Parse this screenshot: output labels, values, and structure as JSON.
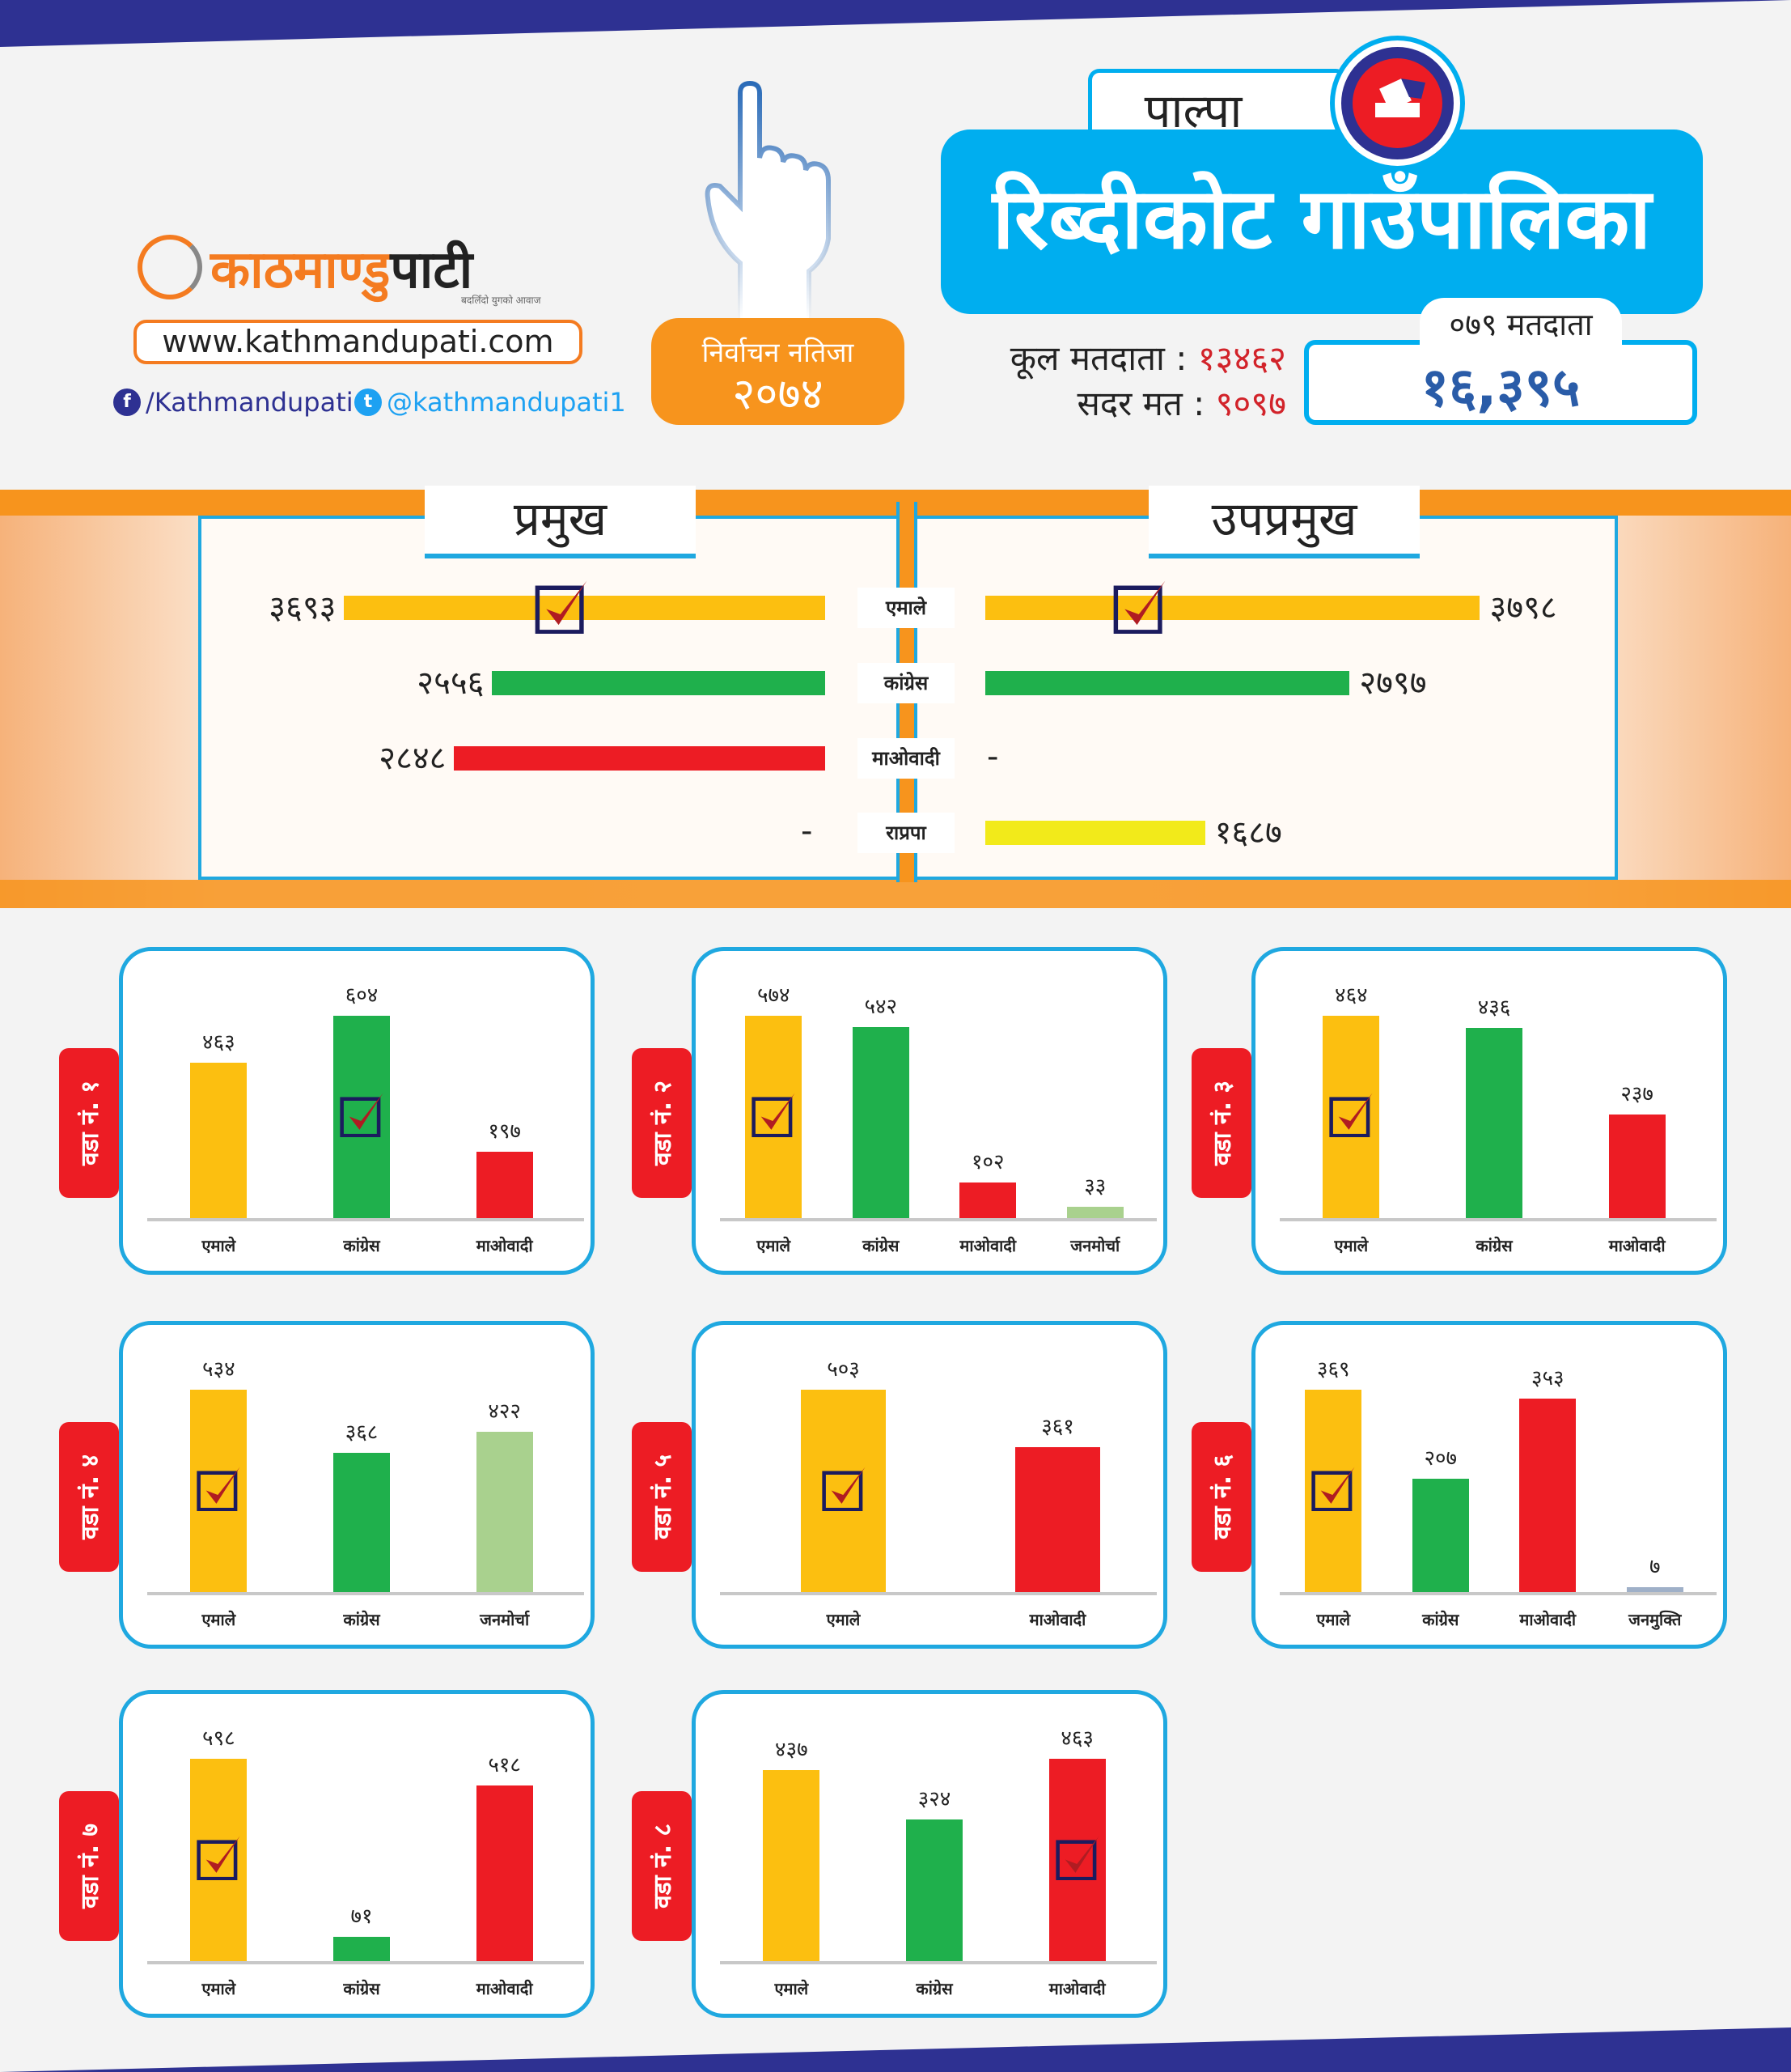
{
  "brand": {
    "logo_orange": "काठमाण्डु",
    "logo_black": "पाटी",
    "tagline": "बदलिँदो युगको आवाज",
    "url": "www.kathmandupati.com",
    "facebook": "/Kathmandupati",
    "twitter": "@kathmandupati1"
  },
  "badge": {
    "line1": "निर्वाचन नतिजा",
    "line2": "२०७४"
  },
  "header": {
    "district": "पाल्पा",
    "municipality": "रिब्दीकोट गाउँपालिका"
  },
  "stats": {
    "total_label": "कूल मतदाता :",
    "total_value": "१३४६२",
    "valid_label": "सदर मत :",
    "valid_value": "९०९७",
    "voters079_label": "०७९ मतदाता",
    "voters079_value": "१६,३९५"
  },
  "colors": {
    "एमाले": "#fcbf10",
    "कांग्रेस": "#1fb04c",
    "माओवादी": "#ed1c24",
    "राप्रपा": "#f2ea1a",
    "जनमोर्चा": "#a9d18e",
    "जनमुक्ति": "#9fb0c8",
    "accent": "#00aeef",
    "orange": "#f7941d"
  },
  "chart_data": [
    {
      "type": "bar",
      "title": "प्रमुख",
      "categories": [
        "एमाले",
        "कांग्रेस",
        "माओवादी",
        "राप्रपा"
      ],
      "values": [
        3693,
        2556,
        2848,
        null
      ],
      "labels": [
        "३६९३",
        "२५५६",
        "२८४८",
        "-"
      ],
      "winner": "एमाले"
    },
    {
      "type": "bar",
      "title": "उपप्रमुख",
      "categories": [
        "एमाले",
        "कांग्रेस",
        "माओवादी",
        "राप्रपा"
      ],
      "values": [
        3798,
        2797,
        null,
        1687
      ],
      "labels": [
        "३७९८",
        "२७९७",
        "-",
        "१६८७"
      ],
      "winner": "एमाले"
    },
    {
      "type": "bar",
      "title": "वडा नं. १",
      "categories": [
        "एमाले",
        "कांग्रेस",
        "माओवादी"
      ],
      "values": [
        463,
        604,
        197
      ],
      "labels": [
        "४६३",
        "६०४",
        "१९७"
      ],
      "winner": "कांग्रेस"
    },
    {
      "type": "bar",
      "title": "वडा नं. २",
      "categories": [
        "एमाले",
        "कांग्रेस",
        "माओवादी",
        "जनमोर्चा"
      ],
      "values": [
        574,
        542,
        102,
        33
      ],
      "labels": [
        "५७४",
        "५४२",
        "१०२",
        "३३"
      ],
      "winner": "एमाले"
    },
    {
      "type": "bar",
      "title": "वडा नं. ३",
      "categories": [
        "एमाले",
        "कांग्रेस",
        "माओवादी"
      ],
      "values": [
        464,
        436,
        237
      ],
      "labels": [
        "४६४",
        "४३६",
        "२३७"
      ],
      "winner": "एमाले"
    },
    {
      "type": "bar",
      "title": "वडा नं. ४",
      "categories": [
        "एमाले",
        "कांग्रेस",
        "जनमोर्चा"
      ],
      "values": [
        534,
        368,
        422
      ],
      "labels": [
        "५३४",
        "३६८",
        "४२२"
      ],
      "winner": "एमाले"
    },
    {
      "type": "bar",
      "title": "वडा नं. ५",
      "categories": [
        "एमाले",
        "माओवादी"
      ],
      "values": [
        503,
        361
      ],
      "labels": [
        "५०३",
        "३६१"
      ],
      "winner": "एमाले"
    },
    {
      "type": "bar",
      "title": "वडा नं. ६",
      "categories": [
        "एमाले",
        "कांग्रेस",
        "माओवादी",
        "जनमुक्ति"
      ],
      "values": [
        369,
        207,
        353,
        7
      ],
      "labels": [
        "३६९",
        "२०७",
        "३५३",
        "७"
      ],
      "winner": "एमाले"
    },
    {
      "type": "bar",
      "title": "वडा नं. ७",
      "categories": [
        "एमाले",
        "कांग्रेस",
        "माओवादी"
      ],
      "values": [
        598,
        71,
        518
      ],
      "labels": [
        "५९८",
        "७१",
        "५१८"
      ],
      "winner": "एमाले"
    },
    {
      "type": "bar",
      "title": "वडा नं. ८",
      "categories": [
        "एमाले",
        "कांग्रेस",
        "माओवादी"
      ],
      "values": [
        437,
        324,
        463
      ],
      "labels": [
        "४३७",
        "३२४",
        "४६३"
      ],
      "winner": "माओवादी"
    }
  ]
}
